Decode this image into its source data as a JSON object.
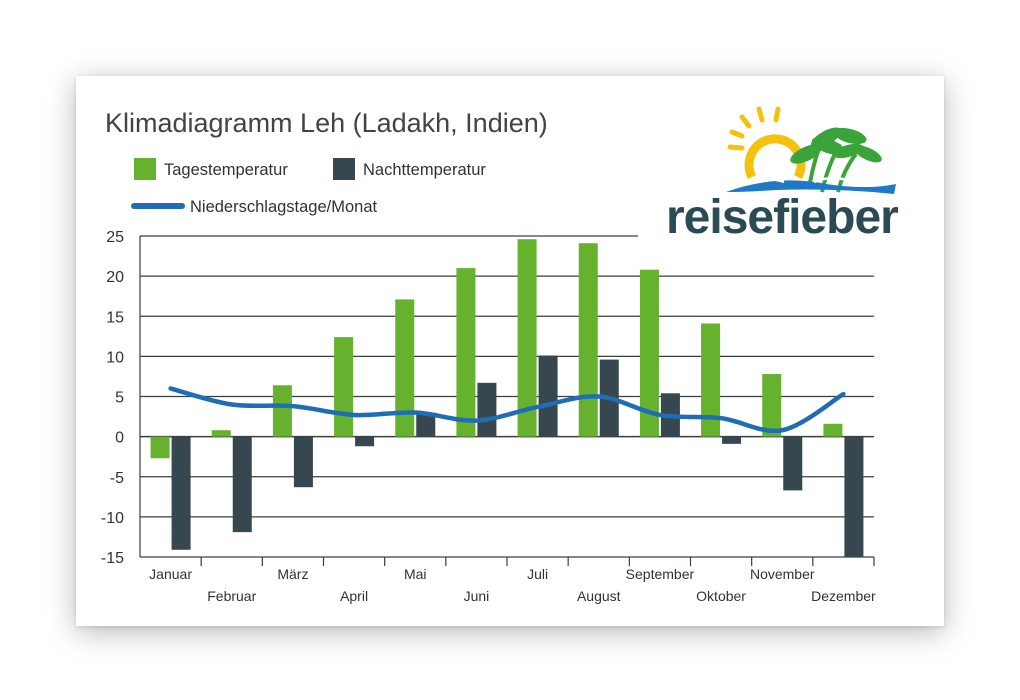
{
  "chart_data": {
    "type": "bar+line",
    "title": "Klimadiagramm Leh (Ladakh, Indien)",
    "xlabel": "",
    "ylabel": "",
    "ylim": [
      -15,
      25
    ],
    "yticks": [
      "25",
      "20",
      "15",
      "10",
      "5",
      "0",
      "-5",
      "-10",
      "-15"
    ],
    "categories": [
      "Januar",
      "Februar",
      "März",
      "April",
      "Mai",
      "Juni",
      "Juli",
      "August",
      "September",
      "Oktober",
      "November",
      "Dezember"
    ],
    "series": [
      {
        "name": "Tagestemperatur",
        "type": "bar",
        "color": "#66b22e",
        "values": [
          -2.7,
          0.8,
          6.4,
          12.4,
          17.1,
          21.0,
          24.6,
          24.1,
          20.8,
          14.1,
          7.8,
          1.6
        ]
      },
      {
        "name": "Nachttemperatur",
        "type": "bar",
        "color": "#37474f",
        "values": [
          -14.1,
          -11.9,
          -6.3,
          -1.2,
          3.0,
          6.7,
          10.1,
          9.6,
          5.4,
          -0.9,
          -6.7,
          -15.0
        ]
      },
      {
        "name": "Niederschlagstage/Monat",
        "type": "line",
        "color": "#1f6eb4",
        "values": [
          6.0,
          4.0,
          3.8,
          2.7,
          3.0,
          2.0,
          3.7,
          5.0,
          2.7,
          2.3,
          0.8,
          5.3
        ]
      }
    ],
    "grid": true,
    "legend_position": "top-left"
  },
  "logo": {
    "text": "reisefieber"
  },
  "colors": {
    "day": "#66b22e",
    "night": "#37474f",
    "line": "#1f6eb4",
    "grid": "#3a3e41",
    "logo_text": "#2a4a54",
    "sun": "#f4c20d",
    "palm": "#3aa33a",
    "wave": "#1f78c8"
  }
}
